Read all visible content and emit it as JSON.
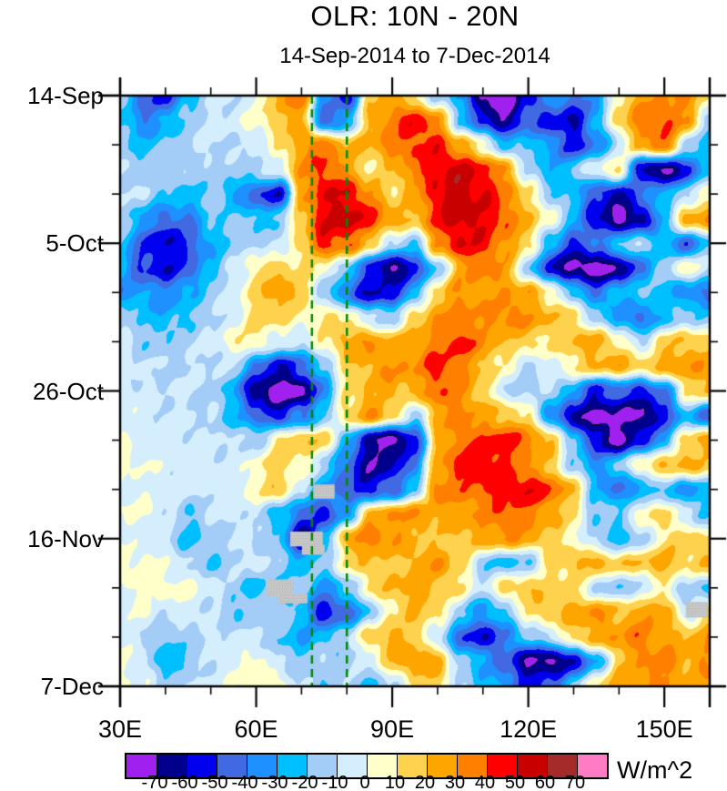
{
  "header": {
    "title": "OLR: 10N - 20N",
    "subtitle": "14-Sep-2014 to 7-Dec-2014"
  },
  "colorbar": {
    "unit": "W/m^2",
    "tick_labels": [
      "-70",
      "-60",
      "-50",
      "-40",
      "-30",
      "-20",
      "-10",
      "0",
      "10",
      "20",
      "30",
      "40",
      "50",
      "60",
      "70"
    ],
    "colors": [
      "#A020F0",
      "#00008C",
      "#0000EE",
      "#4169E1",
      "#1E90FF",
      "#00BFFF",
      "#A3CCF7",
      "#D4EEFE",
      "#FFFFC9",
      "#FFD24D",
      "#FFA500",
      "#FF7F00",
      "#FF0000",
      "#C80000",
      "#A52A2A",
      "#FF7BC4"
    ]
  },
  "chart_data": {
    "type": "heatmap",
    "title": "OLR: 10N - 20N",
    "subtitle": "14-Sep-2014 to 7-Dec-2014",
    "unit": "W/m^2",
    "x_axis": {
      "lon_min": 30,
      "lon_max": 160,
      "major_ticks": [
        {
          "lon": 30,
          "label": "30E"
        },
        {
          "lon": 60,
          "label": "60E"
        },
        {
          "lon": 90,
          "label": "90E"
        },
        {
          "lon": 120,
          "label": "120E"
        },
        {
          "lon": 150,
          "label": "150E"
        }
      ],
      "minor_tick_lons": [
        40,
        50,
        70,
        80,
        100,
        110,
        130,
        140,
        160
      ]
    },
    "y_axis": {
      "day_min": 0,
      "day_max": 84,
      "major_ticks": [
        {
          "day": 0,
          "label": "14-Sep"
        },
        {
          "day": 21,
          "label": "5-Oct"
        },
        {
          "day": 42,
          "label": "26-Oct"
        },
        {
          "day": 63,
          "label": "16-Nov"
        },
        {
          "day": 84,
          "label": "7-Dec"
        }
      ],
      "minor_tick_days": [
        7,
        14,
        28,
        35,
        49,
        56,
        70,
        77
      ]
    },
    "levels": [
      -70,
      -60,
      -50,
      -40,
      -30,
      -20,
      -10,
      0,
      10,
      20,
      30,
      40,
      50,
      60,
      70
    ],
    "palette": [
      "#A020F0",
      "#00008C",
      "#0000EE",
      "#4169E1",
      "#1E90FF",
      "#00BFFF",
      "#A3CCF7",
      "#D4EEFE",
      "#FFFFC9",
      "#FFD24D",
      "#FFA500",
      "#FF7F00",
      "#FF0000",
      "#C80000",
      "#A52A2A",
      "#FF7BC4"
    ],
    "reference_lines": {
      "color": "#008A00",
      "lons": [
        72.3,
        80
      ]
    },
    "missing_color": "#C9C9C9",
    "missing_data_patches": [
      {
        "lon0": 72.6,
        "lon1": 77.3,
        "day0": 55.3,
        "day1": 57.3
      },
      {
        "lon0": 67.5,
        "lon1": 74.7,
        "day0": 62.0,
        "day1": 64.1
      },
      {
        "lon0": 70.1,
        "lon1": 75.1,
        "day0": 63.9,
        "day1": 65.3
      },
      {
        "lon0": 62.3,
        "lon1": 68.1,
        "day0": 68.8,
        "day1": 71.2
      },
      {
        "lon0": 64.9,
        "lon1": 71.3,
        "day0": 70.9,
        "day1": 72.2
      },
      {
        "lon0": 154.7,
        "lon1": 159.6,
        "day0": 72.0,
        "day1": 74.2
      }
    ],
    "grid": {
      "lons": [
        30,
        35,
        40,
        45,
        50,
        55,
        60,
        65,
        70,
        75,
        80,
        85,
        90,
        95,
        100,
        105,
        110,
        115,
        120,
        125,
        130,
        135,
        140,
        145,
        150,
        155,
        160
      ],
      "day_step": 3.5,
      "values": [
        [
          -15,
          -45,
          -55,
          -25,
          -12,
          -8,
          0,
          25,
          35,
          -35,
          -55,
          15,
          28,
          8,
          -12,
          -30,
          -75,
          -78,
          -55,
          -30,
          -45,
          -35,
          10,
          25,
          30,
          30,
          15
        ],
        [
          -20,
          -40,
          -30,
          -15,
          -8,
          -5,
          5,
          18,
          25,
          -50,
          -30,
          20,
          35,
          48,
          30,
          -20,
          -55,
          -70,
          -45,
          -55,
          -60,
          -30,
          15,
          35,
          40,
          30,
          -15
        ],
        [
          -15,
          -25,
          -20,
          -12,
          -6,
          -12,
          -8,
          8,
          28,
          38,
          20,
          22,
          35,
          42,
          45,
          25,
          5,
          -25,
          -20,
          -35,
          -55,
          -40,
          -10,
          25,
          38,
          -10,
          -30
        ],
        [
          -10,
          -15,
          -12,
          -15,
          -12,
          -15,
          -12,
          -5,
          30,
          42,
          28,
          8,
          18,
          35,
          50,
          55,
          45,
          28,
          -10,
          -30,
          -20,
          0,
          12,
          -60,
          -78,
          -55,
          -20
        ],
        [
          -8,
          -12,
          -20,
          -25,
          -15,
          -30,
          -48,
          -58,
          25,
          48,
          50,
          32,
          12,
          25,
          50,
          55,
          50,
          35,
          12,
          -15,
          -25,
          -50,
          -65,
          -40,
          -25,
          -15,
          10
        ],
        [
          -15,
          -30,
          -45,
          -40,
          -20,
          -15,
          -25,
          -18,
          20,
          50,
          55,
          45,
          28,
          18,
          45,
          55,
          50,
          40,
          20,
          5,
          -25,
          -60,
          -75,
          -65,
          -25,
          25,
          30
        ],
        [
          -22,
          -48,
          -62,
          -50,
          -30,
          -15,
          -10,
          -12,
          15,
          45,
          40,
          18,
          -12,
          -18,
          30,
          50,
          45,
          30,
          15,
          -30,
          -52,
          -40,
          -20,
          -12,
          -30,
          -45,
          -20
        ],
        [
          -28,
          -52,
          -58,
          -48,
          -25,
          -10,
          10,
          16,
          10,
          5,
          -18,
          -50,
          -75,
          -55,
          -18,
          25,
          35,
          25,
          -15,
          -58,
          -75,
          -78,
          -70,
          -40,
          -15,
          8,
          -10
        ],
        [
          -35,
          -32,
          -38,
          -30,
          -15,
          -5,
          15,
          28,
          18,
          -18,
          -42,
          -62,
          -55,
          -28,
          15,
          30,
          25,
          30,
          25,
          8,
          -22,
          -42,
          -28,
          -18,
          -22,
          -38,
          -42
        ],
        [
          -12,
          -22,
          -28,
          -20,
          -12,
          -5,
          12,
          15,
          5,
          12,
          10,
          -12,
          -15,
          15,
          30,
          35,
          30,
          35,
          30,
          20,
          15,
          -15,
          -32,
          -45,
          -25,
          -15,
          -20
        ],
        [
          -8,
          -15,
          -18,
          -12,
          -8,
          8,
          10,
          -5,
          -8,
          8,
          25,
          30,
          20,
          25,
          35,
          45,
          30,
          20,
          15,
          10,
          20,
          25,
          10,
          -12,
          15,
          20,
          15
        ],
        [
          -5,
          -10,
          -12,
          -10,
          -8,
          -12,
          -40,
          -60,
          -45,
          -20,
          15,
          25,
          30,
          30,
          45,
          35,
          20,
          5,
          -12,
          -5,
          10,
          20,
          25,
          15,
          25,
          30,
          25
        ],
        [
          -5,
          -8,
          -10,
          -8,
          -10,
          -30,
          -70,
          -78,
          -75,
          -35,
          10,
          20,
          25,
          20,
          40,
          30,
          15,
          -10,
          -15,
          -10,
          -30,
          -55,
          -45,
          -55,
          -40,
          10,
          20
        ],
        [
          -3,
          -5,
          -8,
          -10,
          -12,
          -25,
          -45,
          -55,
          -40,
          -20,
          15,
          30,
          15,
          -15,
          25,
          35,
          25,
          20,
          10,
          -35,
          -65,
          -75,
          -70,
          -75,
          -55,
          -25,
          -45
        ],
        [
          0,
          -5,
          -8,
          -5,
          -8,
          -10,
          -15,
          10,
          20,
          15,
          -25,
          -65,
          -78,
          -55,
          20,
          35,
          40,
          45,
          35,
          20,
          -20,
          -60,
          -75,
          -55,
          -30,
          15,
          25
        ],
        [
          2,
          0,
          -5,
          -3,
          -5,
          -8,
          5,
          15,
          10,
          -15,
          -45,
          -70,
          -60,
          -40,
          25,
          45,
          50,
          40,
          30,
          15,
          -15,
          -35,
          -20,
          10,
          20,
          25,
          15
        ],
        [
          0,
          -3,
          -5,
          -8,
          -5,
          -3,
          8,
          18,
          -10,
          -30,
          -50,
          -55,
          -45,
          -20,
          35,
          35,
          40,
          45,
          50,
          40,
          20,
          -25,
          -45,
          -30,
          -20,
          -35,
          -25
        ],
        [
          0,
          2,
          -5,
          -20,
          -10,
          -5,
          -10,
          -25,
          -45,
          -55,
          -30,
          20,
          30,
          30,
          25,
          25,
          30,
          40,
          35,
          25,
          10,
          -20,
          -15,
          5,
          15,
          -10,
          -20
        ],
        [
          -3,
          -5,
          -10,
          -25,
          -15,
          -8,
          -12,
          -20,
          -70,
          -30,
          25,
          35,
          30,
          20,
          15,
          20,
          25,
          30,
          25,
          15,
          5,
          -15,
          -25,
          -15,
          10,
          15,
          10
        ],
        [
          2,
          5,
          0,
          -10,
          -20,
          -12,
          -5,
          -15,
          -25,
          -15,
          10,
          20,
          15,
          25,
          30,
          15,
          -15,
          -25,
          -20,
          10,
          20,
          25,
          15,
          20,
          25,
          15,
          20
        ],
        [
          0,
          3,
          5,
          3,
          -5,
          -15,
          -25,
          -20,
          -15,
          -35,
          -20,
          10,
          20,
          25,
          20,
          10,
          -10,
          15,
          20,
          15,
          10,
          -10,
          -20,
          -10,
          5,
          -15,
          -20
        ],
        [
          -3,
          0,
          -8,
          -5,
          -10,
          -20,
          -15,
          -10,
          -25,
          -60,
          -45,
          -20,
          10,
          20,
          15,
          -15,
          -35,
          -20,
          10,
          20,
          25,
          30,
          20,
          25,
          30,
          -10,
          15
        ],
        [
          -5,
          -10,
          -20,
          -15,
          -8,
          -5,
          -10,
          -20,
          -30,
          -25,
          -10,
          15,
          25,
          15,
          -10,
          -45,
          -60,
          -40,
          -20,
          -10,
          15,
          25,
          30,
          35,
          25,
          20,
          30
        ],
        [
          3,
          -5,
          -30,
          -20,
          -8,
          -3,
          5,
          -10,
          -20,
          -10,
          -15,
          -5,
          20,
          30,
          25,
          -15,
          -30,
          -45,
          -70,
          -75,
          -60,
          -30,
          15,
          30,
          35,
          25,
          30
        ],
        [
          0,
          -3,
          -15,
          -10,
          -5,
          0,
          10,
          5,
          -10,
          -20,
          -10,
          -20,
          -15,
          10,
          15,
          -10,
          -25,
          -35,
          -55,
          -45,
          -20,
          10,
          25,
          30,
          30,
          20,
          25
        ]
      ]
    }
  }
}
